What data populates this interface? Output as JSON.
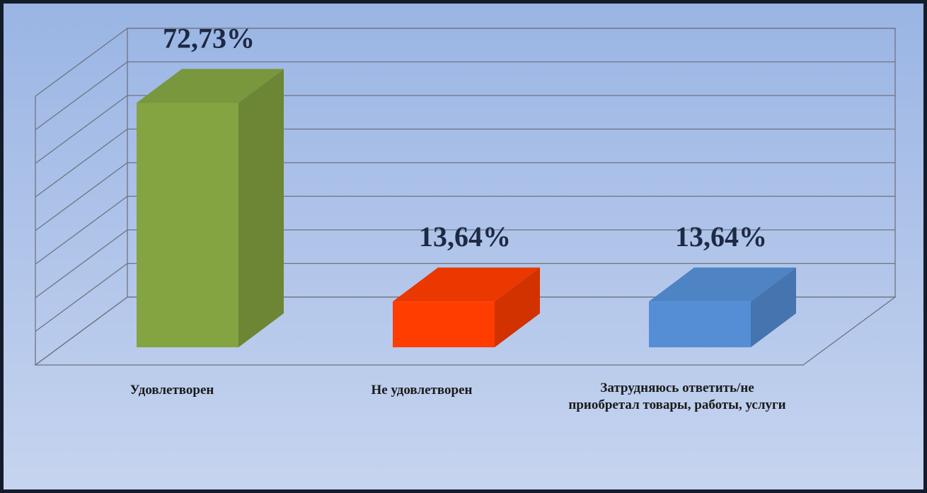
{
  "chart_data": {
    "type": "bar3d",
    "categories": [
      "Удовлетворен",
      "Не удовлетворен",
      "Затрудняюсь ответить/не приобретал товары, работы, услуги"
    ],
    "values": [
      72.73,
      13.64,
      13.64
    ],
    "value_labels": [
      "72,73%",
      "13,64%",
      "13,64%"
    ],
    "colors": [
      "#84a441",
      "#ff3d00",
      "#558ed5"
    ],
    "ylim": [
      0,
      80
    ],
    "yticks": [
      0,
      10,
      20,
      30,
      40,
      50,
      60,
      70,
      80
    ],
    "grid": true
  }
}
